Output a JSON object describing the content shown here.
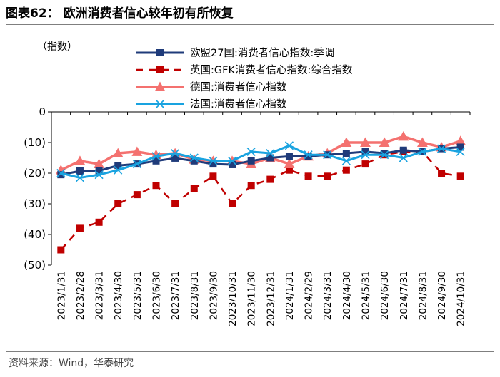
{
  "header": {
    "title": "图表62： 欧洲消费者信心较年初有所恢复"
  },
  "footer": {
    "source": "资料来源：Wind，华泰研究"
  },
  "chart_data": {
    "type": "line",
    "title": "欧洲消费者信心较年初有所恢复",
    "ylabel": "（指数）",
    "xlabel": "",
    "ylim": [
      -50,
      0
    ],
    "yticks": [
      0,
      -10,
      -20,
      -30,
      -40,
      -50
    ],
    "ytick_labels": [
      "0",
      "(10)",
      "(20)",
      "(30)",
      "(40)",
      "(50)"
    ],
    "grid": false,
    "legend_position": "top",
    "categories": [
      "2023/1/31",
      "2023/2/28",
      "2023/3/31",
      "2023/4/30",
      "2023/5/31",
      "2023/6/30",
      "2023/7/31",
      "2023/8/31",
      "2023/9/30",
      "2023/10/31",
      "2023/11/30",
      "2023/12/31",
      "2024/1/31",
      "2024/2/29",
      "2024/3/31",
      "2024/4/30",
      "2024/5/31",
      "2024/6/30",
      "2024/7/31",
      "2024/8/31",
      "2024/9/30",
      "2024/10/31"
    ],
    "series": [
      {
        "name": "欧盟27国:消费者信心指数:季调",
        "color": "#1f3b7a",
        "marker": "square",
        "style": "solid",
        "values": [
          -20.5,
          -19.3,
          -19.2,
          -17.5,
          -17.0,
          -16.0,
          -15.1,
          -16.0,
          -17.0,
          -17.2,
          -16.0,
          -15.0,
          -14.5,
          -14.5,
          -14.0,
          -13.5,
          -13.0,
          -13.5,
          -12.5,
          -13.0,
          -12.0,
          -11.5
        ]
      },
      {
        "name": "英国:GFK消费者信心指数:综合指数",
        "color": "#c00000",
        "marker": "square",
        "style": "dashed",
        "values": [
          -45,
          -38,
          -36,
          -30,
          -27,
          -24,
          -30,
          -25,
          -21,
          -30,
          -24,
          -22,
          -19,
          -21,
          -21,
          -19,
          -17,
          -14,
          -13,
          -13,
          -20,
          -21
        ]
      },
      {
        "name": "德国:消费者信心指数",
        "color": "#f4716f",
        "marker": "triangle",
        "style": "solid",
        "values": [
          -19.0,
          -16.0,
          -17.0,
          -13.5,
          -13.0,
          -14.0,
          -13.5,
          -15.5,
          -16.0,
          -16.0,
          -17.0,
          -15.0,
          -17.0,
          -14.5,
          -13.5,
          -10.0,
          -10.0,
          -10.0,
          -8.0,
          -10.0,
          -11.5,
          -9.5
        ]
      },
      {
        "name": "法国:消费者信心指数",
        "color": "#19a3e0",
        "marker": "x",
        "style": "solid",
        "values": [
          -20.0,
          -21.5,
          -20.5,
          -19.0,
          -17.0,
          -14.5,
          -13.5,
          -15.0,
          -16.0,
          -16.0,
          -13.0,
          -13.5,
          -11.0,
          -14.0,
          -14.0,
          -16.0,
          -14.0,
          -14.0,
          -15.0,
          -13.0,
          -12.0,
          -13.0
        ]
      }
    ]
  }
}
